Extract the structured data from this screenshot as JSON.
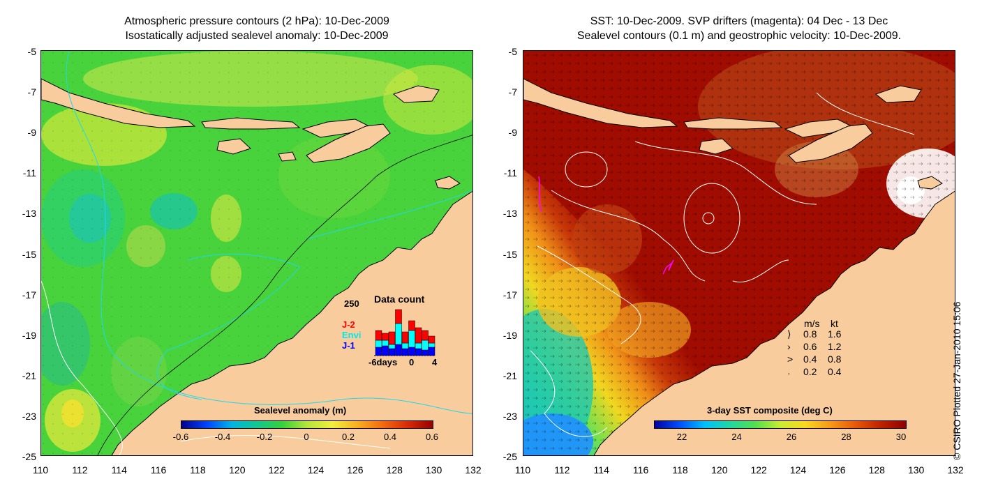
{
  "left_panel": {
    "title_line1": "Atmospheric pressure contours (2 hPa): 10-Dec-2009",
    "title_line2": "Isostatically adjusted sealevel anomaly: 10-Dec-2009",
    "colorbar": {
      "label": "Sealevel anomaly (m)",
      "ticks": [
        "-0.6",
        "-0.4",
        "-0.2",
        "0",
        "0.2",
        "0.4",
        "0.6"
      ],
      "colors": [
        "#00008c",
        "#0044ff",
        "#00b4e6",
        "#10c890",
        "#34d23a",
        "#b4e63c",
        "#f0ee3c",
        "#f8b020",
        "#f46a10",
        "#d82a08",
        "#980000"
      ]
    },
    "data_count": {
      "title": "Data count",
      "ymax_label": "250",
      "x_start_label": "-6days",
      "x_mid_label": "0",
      "x_end_label": "4",
      "legend": [
        {
          "label": "J-2",
          "color": "#ff0000"
        },
        {
          "label": "Envi",
          "color": "#00ffff"
        },
        {
          "label": "J-1",
          "color": "#0000ff"
        }
      ]
    }
  },
  "right_panel": {
    "title_line1": "SST: 10-Dec-2009. SVP drifters (magenta): 04 Dec - 13 Dec",
    "title_line2": "Sealevel contours (0.1 m) and geostrophic velocity: 10-Dec-2009.",
    "colorbar": {
      "label": "3-day SST composite (deg C)",
      "ticks": [
        "22",
        "24",
        "26",
        "28",
        "30"
      ],
      "colors": [
        "#0000a0",
        "#0050ff",
        "#00c0ff",
        "#20d8a0",
        "#50e050",
        "#c8ec30",
        "#f8d820",
        "#f89818",
        "#e85808",
        "#c02000",
        "#900000"
      ]
    },
    "velocity_legend": {
      "header_ms": "m/s",
      "header_kt": "kt",
      "rows": [
        {
          "ms": "0.8",
          "kt": "1.6"
        },
        {
          "ms": "0.6",
          "kt": "1.2"
        },
        {
          "ms": "0.4",
          "kt": "0.8"
        },
        {
          "ms": "0.2",
          "kt": "0.4"
        }
      ]
    }
  },
  "axes": {
    "y_ticks": [
      "-5",
      "-7",
      "-9",
      "-11",
      "-13",
      "-15",
      "-17",
      "-19",
      "-21",
      "-23",
      "-25"
    ],
    "x_ticks": [
      "110",
      "112",
      "114",
      "116",
      "118",
      "120",
      "122",
      "124",
      "126",
      "128",
      "130",
      "132"
    ]
  },
  "credit": "© CSIRO Plotted 27-Jan-2010 15:06",
  "colors": {
    "land": "#f8cc9c",
    "drifter": "#ff00ff"
  }
}
